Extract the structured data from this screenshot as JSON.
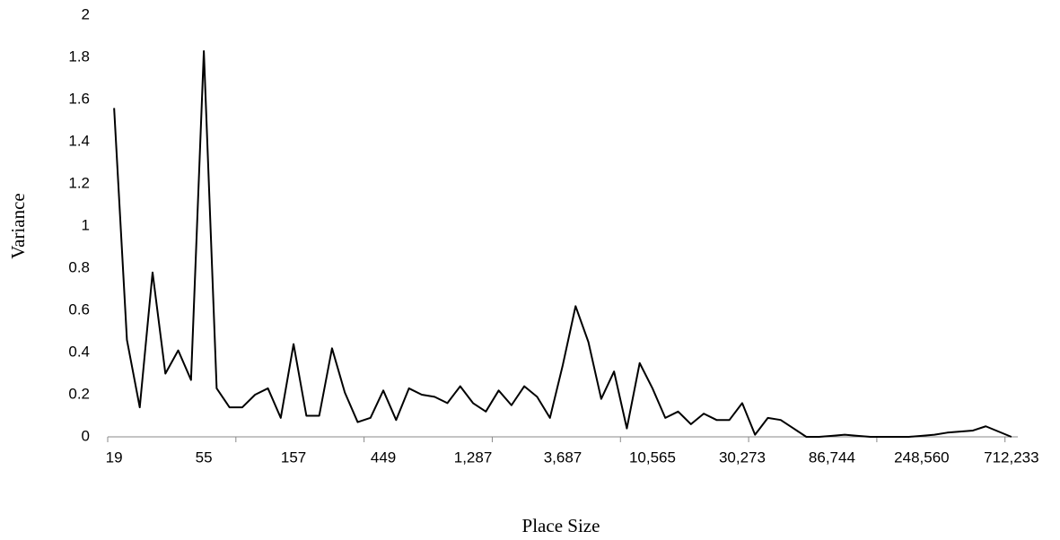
{
  "chart_data": {
    "type": "line",
    "x_label": "Place Size",
    "y_label": "Variance",
    "categories": [
      "19",
      null,
      null,
      null,
      null,
      null,
      null,
      "55",
      null,
      null,
      null,
      null,
      null,
      null,
      "157",
      null,
      null,
      null,
      null,
      null,
      null,
      "449",
      null,
      null,
      null,
      null,
      null,
      null,
      "1,287",
      null,
      null,
      null,
      null,
      null,
      null,
      "3,687",
      null,
      null,
      null,
      null,
      null,
      null,
      "10,565",
      null,
      null,
      null,
      null,
      null,
      null,
      "30,273",
      null,
      null,
      null,
      null,
      null,
      null,
      "86,744",
      null,
      null,
      null,
      null,
      null,
      null,
      "248,560",
      null,
      null,
      null,
      null,
      null,
      null,
      "712,233"
    ],
    "values": [
      1.56,
      0.46,
      0.14,
      0.78,
      0.3,
      0.41,
      0.27,
      1.83,
      0.23,
      0.14,
      0.14,
      0.2,
      0.23,
      0.09,
      0.44,
      0.1,
      0.1,
      0.42,
      0.21,
      0.07,
      0.09,
      0.22,
      0.08,
      0.23,
      0.2,
      0.19,
      0.16,
      0.24,
      0.16,
      0.12,
      0.22,
      0.15,
      0.24,
      0.19,
      0.09,
      0.34,
      0.62,
      0.45,
      0.18,
      0.31,
      0.04,
      0.35,
      0.23,
      0.09,
      0.12,
      0.06,
      0.11,
      0.08,
      0.08,
      0.16,
      0.01,
      0.09,
      0.08,
      0.04,
      0.0,
      0.0,
      0.005,
      0.01,
      0.005,
      0.0,
      0.0,
      0.0,
      0.0,
      0.005,
      0.01,
      0.02,
      0.025,
      0.03,
      0.05,
      0.025,
      0.0
    ],
    "color": "#000000",
    "ylim": [
      0,
      2
    ],
    "yticks": [
      0,
      0.2,
      0.4,
      0.6,
      0.8,
      1,
      1.2,
      1.4,
      1.6,
      1.8,
      2
    ],
    "grid": false
  }
}
